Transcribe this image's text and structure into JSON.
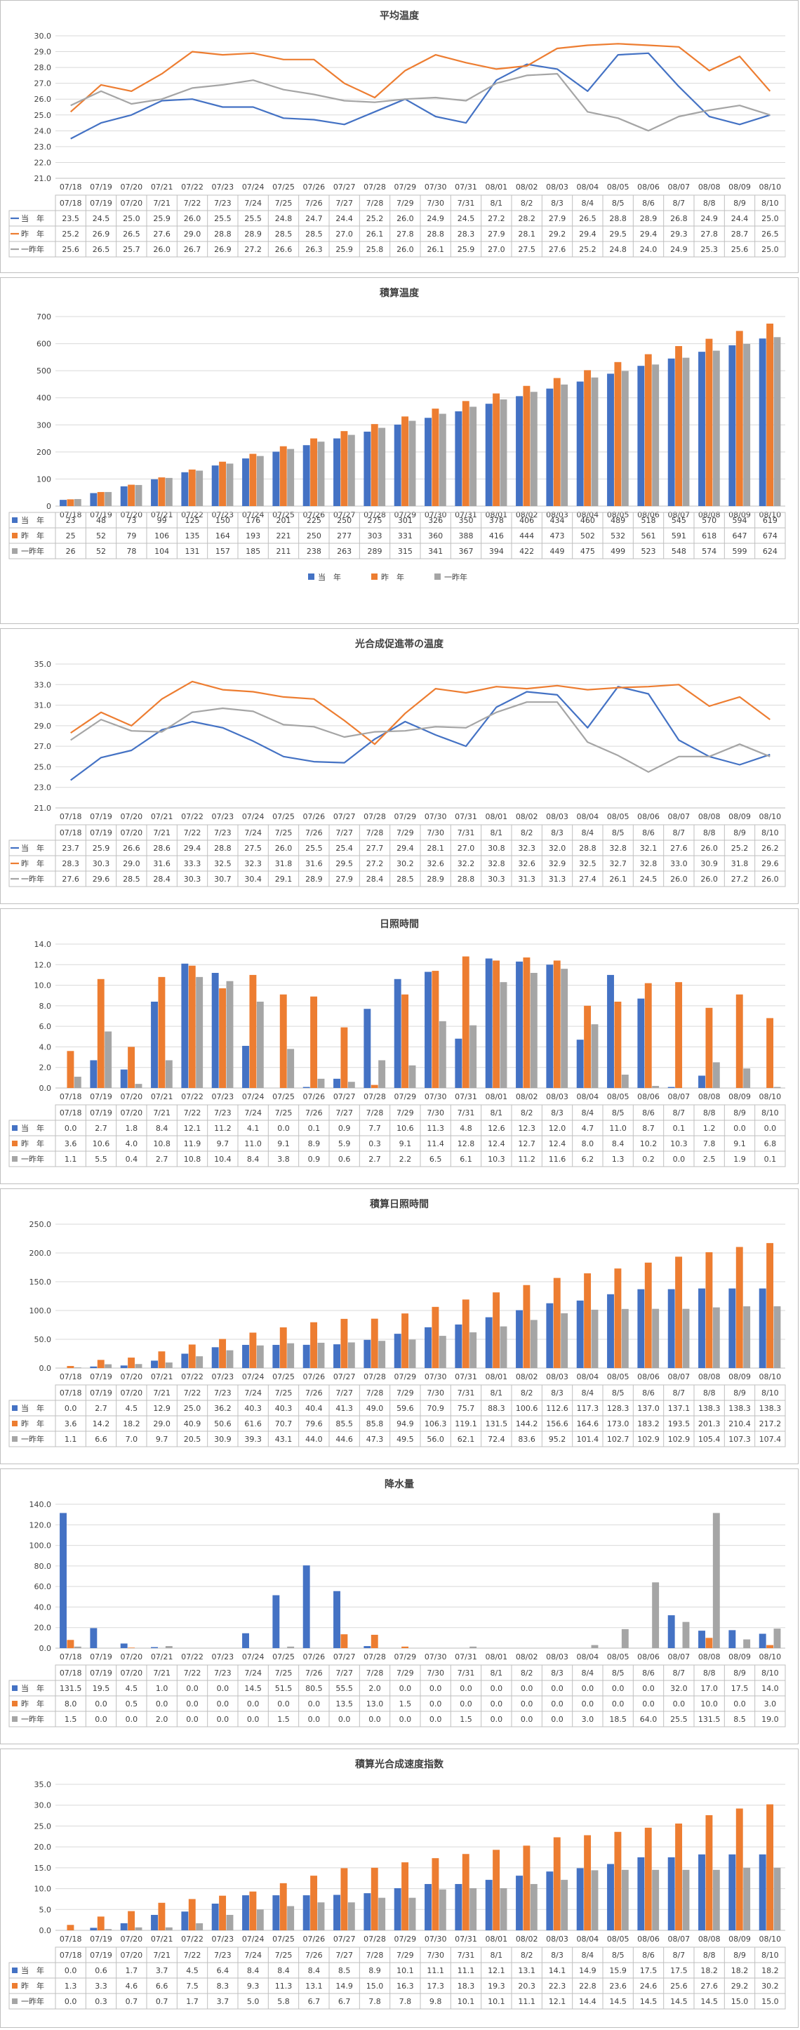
{
  "colors": {
    "current": "#4472c4",
    "last_year": "#ed7d31",
    "two_years_ago": "#a5a5a5"
  },
  "axis_dates_a": [
    "07/18",
    "07/19",
    "07/20",
    "7/21",
    "7/22",
    "7/23",
    "7/24",
    "7/25",
    "7/26",
    "7/27",
    "7/28",
    "7/29",
    "7/30",
    "7/31",
    "8/1",
    "8/2",
    "8/3",
    "8/4",
    "8/5",
    "8/6",
    "8/7",
    "8/8",
    "8/9",
    "8/10"
  ],
  "axis_dates_b": [
    "07/18",
    "07/19",
    "07/20",
    "07/21",
    "07/22",
    "07/23",
    "07/24",
    "07/25",
    "07/26",
    "07/27",
    "07/28",
    "07/29",
    "07/30",
    "07/31",
    "08/01",
    "08/02",
    "08/03",
    "08/04",
    "08/05",
    "08/06",
    "08/07",
    "08/08",
    "08/09",
    "08/10"
  ],
  "axis_dates_c": [
    "07/18",
    "07/19",
    "07/20",
    "7/21",
    "7/22",
    "7/23",
    "7/24",
    "7/25",
    "7/26",
    "7/27",
    "7/28",
    "7/29",
    "7/30",
    "7/31",
    "8/1",
    "8/2",
    "8/3",
    "8/4",
    "8/5",
    "8/6",
    "8/7",
    "8/8",
    "8/9",
    "8/10"
  ],
  "chart_data": [
    {
      "type": "line",
      "title": "平均温度",
      "ylim": [
        21.0,
        30.0
      ],
      "ystep": 1.0,
      "ydecimals": 1,
      "axis_labels_key": "axis_dates_b",
      "table_labels_key": "axis_dates_a",
      "legend": "table",
      "series": [
        {
          "name": "当　年",
          "values": [
            23.5,
            24.5,
            25.0,
            25.9,
            26.0,
            25.5,
            25.5,
            24.8,
            24.7,
            24.4,
            25.2,
            26.0,
            24.9,
            24.5,
            27.2,
            28.2,
            27.9,
            26.5,
            28.8,
            28.9,
            26.8,
            24.9,
            24.4,
            25.0
          ]
        },
        {
          "name": "昨　年",
          "values": [
            25.2,
            26.9,
            26.5,
            27.6,
            29.0,
            28.8,
            28.9,
            28.5,
            28.5,
            27.0,
            26.1,
            27.8,
            28.8,
            28.3,
            27.9,
            28.1,
            29.2,
            29.4,
            29.5,
            29.4,
            29.3,
            27.8,
            28.7,
            26.5
          ]
        },
        {
          "name": "一昨年",
          "values": [
            25.6,
            26.5,
            25.7,
            26.0,
            26.7,
            26.9,
            27.2,
            26.6,
            26.3,
            25.9,
            25.8,
            26.0,
            26.1,
            25.9,
            27.0,
            27.5,
            27.6,
            25.2,
            24.8,
            24.0,
            24.9,
            25.3,
            25.6,
            25.0
          ]
        }
      ]
    },
    {
      "type": "bar",
      "title": "積算温度",
      "ylim": [
        0,
        700
      ],
      "ystep": 100,
      "ydecimals": 0,
      "axis_labels_key": "axis_dates_b",
      "table_labels_key": "axis_dates_b",
      "legend": "bottom",
      "series": [
        {
          "name": "当　年",
          "values": [
            23,
            48,
            73,
            99,
            125,
            150,
            176,
            201,
            225,
            250,
            275,
            301,
            326,
            350,
            378,
            406,
            434,
            460,
            489,
            518,
            545,
            570,
            594,
            619
          ]
        },
        {
          "name": "昨　年",
          "values": [
            25,
            52,
            79,
            106,
            135,
            164,
            193,
            221,
            250,
            277,
            303,
            331,
            360,
            388,
            416,
            444,
            473,
            502,
            532,
            561,
            591,
            618,
            647,
            674
          ]
        },
        {
          "name": "一昨年",
          "values": [
            26,
            52,
            78,
            104,
            131,
            157,
            185,
            211,
            238,
            263,
            289,
            315,
            341,
            367,
            394,
            422,
            449,
            475,
            499,
            523,
            548,
            574,
            599,
            624
          ]
        }
      ]
    },
    {
      "type": "line",
      "title": "光合成促進帯の温度",
      "ylim": [
        21.0,
        35.0
      ],
      "ystep": 2.0,
      "ydecimals": 1,
      "axis_labels_key": "axis_dates_b",
      "table_labels_key": "axis_dates_a",
      "legend": "table",
      "series": [
        {
          "name": "当　年",
          "values": [
            23.7,
            25.9,
            26.6,
            28.6,
            29.4,
            28.8,
            27.5,
            26.0,
            25.5,
            25.4,
            27.7,
            29.4,
            28.1,
            27.0,
            30.8,
            32.3,
            32.0,
            28.8,
            32.8,
            32.1,
            27.6,
            26.0,
            25.2,
            26.2
          ]
        },
        {
          "name": "昨　年",
          "values": [
            28.3,
            30.3,
            29.0,
            31.6,
            33.3,
            32.5,
            32.3,
            31.8,
            31.6,
            29.5,
            27.2,
            30.2,
            32.6,
            32.2,
            32.8,
            32.6,
            32.9,
            32.5,
            32.7,
            32.8,
            33.0,
            30.9,
            31.8,
            29.6
          ]
        },
        {
          "name": "一昨年",
          "values": [
            27.6,
            29.6,
            28.5,
            28.4,
            30.3,
            30.7,
            30.4,
            29.1,
            28.9,
            27.9,
            28.4,
            28.5,
            28.9,
            28.8,
            30.3,
            31.3,
            31.3,
            27.4,
            26.1,
            24.5,
            26.0,
            26.0,
            27.2,
            26.0
          ]
        }
      ]
    },
    {
      "type": "bar",
      "title": "日照時間",
      "ylim": [
        0.0,
        14.0
      ],
      "ystep": 2.0,
      "ydecimals": 1,
      "axis_labels_key": "axis_dates_b",
      "table_labels_key": "axis_dates_a",
      "legend": "table",
      "series": [
        {
          "name": "当　年",
          "values": [
            0.0,
            2.7,
            1.8,
            8.4,
            12.1,
            11.2,
            4.1,
            0.0,
            0.1,
            0.9,
            7.7,
            10.6,
            11.3,
            4.8,
            12.6,
            12.3,
            12.0,
            4.7,
            11.0,
            8.7,
            0.1,
            1.2,
            0.0,
            0.0
          ]
        },
        {
          "name": "昨　年",
          "values": [
            3.6,
            10.6,
            4.0,
            10.8,
            11.9,
            9.7,
            11.0,
            9.1,
            8.9,
            5.9,
            0.3,
            9.1,
            11.4,
            12.8,
            12.4,
            12.7,
            12.4,
            8.0,
            8.4,
            10.2,
            10.3,
            7.8,
            9.1,
            6.8
          ]
        },
        {
          "name": "一昨年",
          "values": [
            1.1,
            5.5,
            0.4,
            2.7,
            10.8,
            10.4,
            8.4,
            3.8,
            0.9,
            0.6,
            2.7,
            2.2,
            6.5,
            6.1,
            10.3,
            11.2,
            11.6,
            6.2,
            1.3,
            0.2,
            0.0,
            2.5,
            1.9,
            0.1
          ]
        }
      ]
    },
    {
      "type": "bar",
      "title": "積算日照時間",
      "ylim": [
        0.0,
        250.0
      ],
      "ystep": 50.0,
      "ydecimals": 1,
      "axis_labels_key": "axis_dates_b",
      "table_labels_key": "axis_dates_c",
      "legend": "table",
      "series": [
        {
          "name": "当　年",
          "values": [
            0.0,
            2.7,
            4.5,
            12.9,
            25.0,
            36.2,
            40.3,
            40.3,
            40.4,
            41.3,
            49.0,
            59.6,
            70.9,
            75.7,
            88.3,
            100.6,
            112.6,
            117.3,
            128.3,
            137.0,
            137.1,
            138.3,
            138.3,
            138.3
          ]
        },
        {
          "name": "昨　年",
          "values": [
            3.6,
            14.2,
            18.2,
            29.0,
            40.9,
            50.6,
            61.6,
            70.7,
            79.6,
            85.5,
            85.8,
            94.9,
            106.3,
            119.1,
            131.5,
            144.2,
            156.6,
            164.6,
            173.0,
            183.2,
            193.5,
            201.3,
            210.4,
            217.2
          ]
        },
        {
          "name": "一昨年",
          "values": [
            1.1,
            6.6,
            7.0,
            9.7,
            20.5,
            30.9,
            39.3,
            43.1,
            44.0,
            44.6,
            47.3,
            49.5,
            56.0,
            62.1,
            72.4,
            83.6,
            95.2,
            101.4,
            102.7,
            102.9,
            102.9,
            105.4,
            107.3,
            107.4
          ]
        }
      ]
    },
    {
      "type": "bar",
      "title": "降水量",
      "ylim": [
        0.0,
        140.0
      ],
      "ystep": 20.0,
      "ydecimals": 1,
      "axis_labels_key": "axis_dates_b",
      "table_labels_key": "axis_dates_c",
      "legend": "table",
      "series": [
        {
          "name": "当　年",
          "values": [
            131.5,
            19.5,
            4.5,
            1.0,
            0.0,
            0.0,
            14.5,
            51.5,
            80.5,
            55.5,
            2.0,
            0.0,
            0.0,
            0.0,
            0.0,
            0.0,
            0.0,
            0.0,
            0.0,
            0.0,
            32.0,
            17.0,
            17.5,
            14.0
          ]
        },
        {
          "name": "昨　年",
          "values": [
            8.0,
            0.0,
            0.5,
            0.0,
            0.0,
            0.0,
            0.0,
            0.0,
            0.0,
            13.5,
            13.0,
            1.5,
            0.0,
            0.0,
            0.0,
            0.0,
            0.0,
            0.0,
            0.0,
            0.0,
            0.0,
            10.0,
            0.0,
            3.0
          ]
        },
        {
          "name": "一昨年",
          "values": [
            1.5,
            0.0,
            0.0,
            2.0,
            0.0,
            0.0,
            0.0,
            1.5,
            0.0,
            0.0,
            0.0,
            0.0,
            0.0,
            1.5,
            0.0,
            0.0,
            0.0,
            3.0,
            18.5,
            64.0,
            25.5,
            131.5,
            8.5,
            19.0
          ]
        }
      ]
    },
    {
      "type": "bar",
      "title": "積算光合成速度指数",
      "ylim": [
        0.0,
        35.0
      ],
      "ystep": 5.0,
      "ydecimals": 1,
      "axis_labels_key": "axis_dates_b",
      "table_labels_key": "axis_dates_c",
      "legend": "table",
      "series": [
        {
          "name": "当　年",
          "values": [
            0.0,
            0.6,
            1.7,
            3.7,
            4.5,
            6.4,
            8.4,
            8.4,
            8.4,
            8.5,
            8.9,
            10.1,
            11.1,
            11.1,
            12.1,
            13.1,
            14.1,
            14.9,
            15.9,
            17.5,
            17.5,
            18.2,
            18.2,
            18.2
          ]
        },
        {
          "name": "昨　年",
          "values": [
            1.3,
            3.3,
            4.6,
            6.6,
            7.5,
            8.3,
            9.3,
            11.3,
            13.1,
            14.9,
            15.0,
            16.3,
            17.3,
            18.3,
            19.3,
            20.3,
            22.3,
            22.8,
            23.6,
            24.6,
            25.6,
            27.6,
            29.2,
            30.2
          ]
        },
        {
          "name": "一昨年",
          "values": [
            0.0,
            0.3,
            0.7,
            0.7,
            1.7,
            3.7,
            5.0,
            5.8,
            6.7,
            6.7,
            7.8,
            7.8,
            9.8,
            10.1,
            10.1,
            11.1,
            12.1,
            14.4,
            14.5,
            14.5,
            14.5,
            14.5,
            15.0,
            15.0
          ]
        }
      ]
    }
  ]
}
